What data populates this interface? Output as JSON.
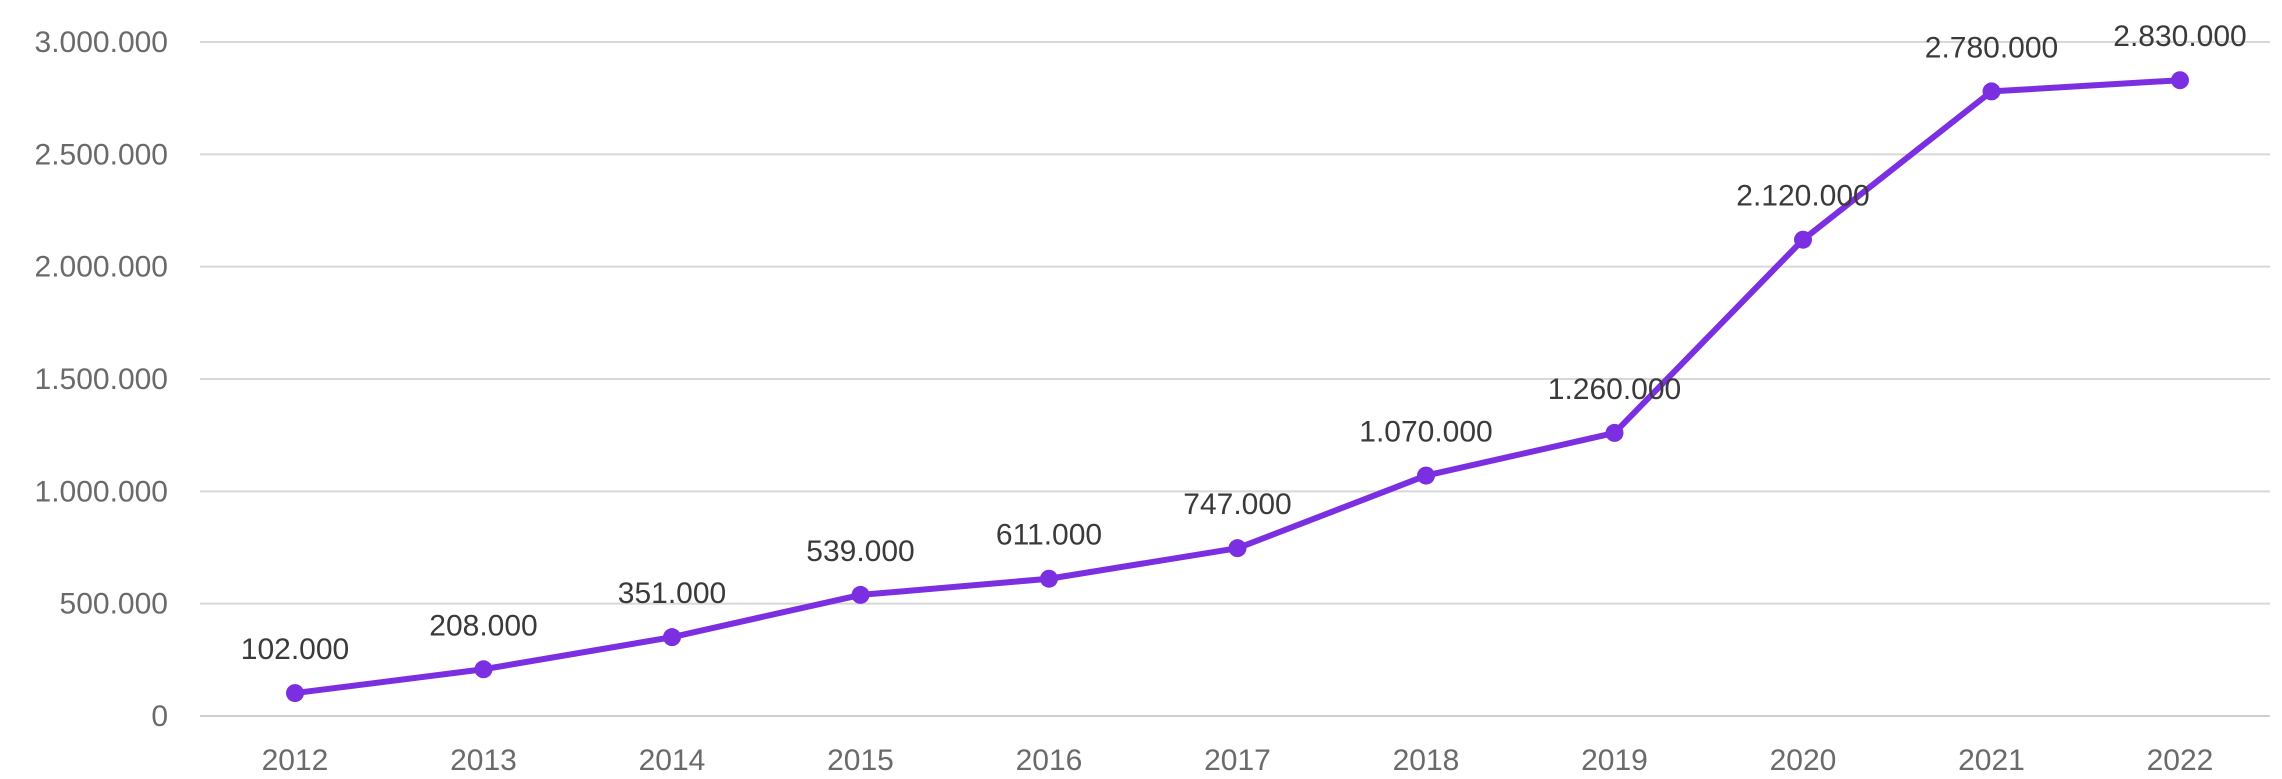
{
  "chart_data": {
    "type": "line",
    "x": [
      "2012",
      "2013",
      "2014",
      "2015",
      "2016",
      "2017",
      "2018",
      "2019",
      "2020",
      "2021",
      "2022"
    ],
    "series": [
      {
        "values": [
          102000,
          208000,
          351000,
          539000,
          611000,
          747000,
          1070000,
          1260000,
          2120000,
          2780000,
          2830000
        ],
        "labels": [
          "102.000",
          "208.000",
          "351.000",
          "539.000",
          "611.000",
          "747.000",
          "1.070.000",
          "1.260.000",
          "2.120.000",
          "2.780.000",
          "2.830.000"
        ],
        "color": "#7b2fe0"
      }
    ],
    "yticks": [
      0,
      500000,
      1000000,
      1500000,
      2000000,
      2500000,
      3000000
    ],
    "ytick_labels": [
      "0",
      "500.000",
      "1.000.000",
      "1.500.000",
      "2.000.000",
      "2.500.000",
      "3.000.000"
    ],
    "ylim": [
      0,
      3000000
    ],
    "grid": true,
    "legend": false,
    "title": "",
    "xlabel": "",
    "ylabel": ""
  }
}
